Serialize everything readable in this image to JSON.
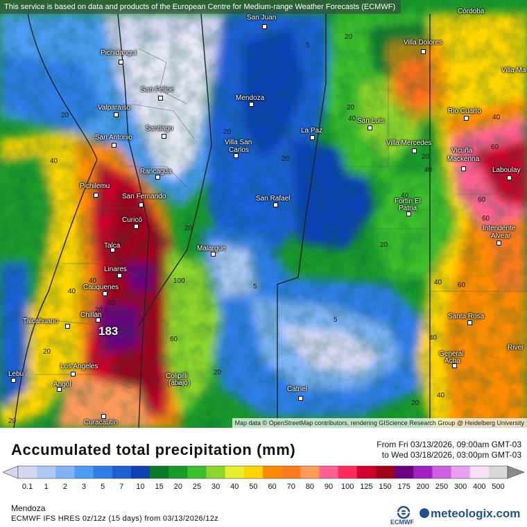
{
  "notice": "This service is based on data and products of the European Centre for Medium-range Weather Forecasts (ECMWF)",
  "attribution": "Map data © OpenStreetMap contributors, rendering GIScience Research Group @ Heidelberg University",
  "cities": {
    "san_juan": "San Juan",
    "cordoba": "Córdoba",
    "pichidangui": "Pichidangui",
    "villa_dolores": "Villa Dolores",
    "villa_ma": "Villa Ma",
    "san_felipe": "San Felipe",
    "mendoza": "Mendoza",
    "valparaiso": "Valparaíso",
    "rio_cuarto": "Rio Cuarto",
    "la_paz": "La Paz",
    "san_luis": "San Luis",
    "santiago": "Santiago",
    "san_antonio": "San Antonio",
    "villa_san_carlos_1": "Villa San",
    "villa_san_carlos_2": "Carlos",
    "villa_mercedes": "Villa Mercedes",
    "vicuna_mackenna_1": "Vicuña",
    "vicuna_mackenna_2": "Mackenna",
    "rancagua": "Rancagua",
    "laboulaye": "Laboulay",
    "pichilemu": "Pichilemu",
    "san_fernando": "San Fernando",
    "san_rafael": "San Rafael",
    "fortin_el_patria_1": "Fortín El",
    "fortin_el_patria_2": "Patria",
    "curico": "Curicó",
    "intendente_alvear_1": "Intendente",
    "intendente_alvear_2": "Alvear",
    "talca": "Talca",
    "malargue": "Malargüe",
    "linares": "Linares",
    "cauquenes": "Cauquenes",
    "santa_rosa": "Santa Rosa",
    "talcahuano": "Talcahuano",
    "chillan": "Chillán",
    "rivera": "River",
    "general_acha_1": "General",
    "general_acha_2": "Acha",
    "los_angeles": "Los Angeles",
    "lebu": "Lebu",
    "colipilli_1": "Colipilli",
    "colipilli_2": "(abajo)",
    "angol": "Angol",
    "catriel": "Catriel",
    "curacautin": "Curacautín"
  },
  "contour_labels": {
    "c1": "20",
    "c2": "5",
    "c3": "20",
    "c4": "40",
    "c5": "20",
    "c6": "40",
    "c7": "20",
    "c8": "40",
    "c9": "20",
    "c10": "20",
    "c11": "40",
    "c12": "60",
    "c13": "40",
    "c14": "60",
    "c15": "20",
    "c16": "60",
    "c17": "20",
    "c18": "5",
    "c19": "40",
    "c20": "40",
    "c21": "60",
    "c22": "40",
    "c23": "60",
    "c24": "20",
    "c25": "5",
    "c26": "40",
    "c27": "20",
    "c28": "20",
    "c29": "20",
    "c30": "100",
    "c31": "40",
    "c32": "60",
    "c33": "20"
  },
  "max_value": "183",
  "title": "Accumulated total precipitation (mm)",
  "period_from": "From Fri 03/13/2026, 09:00am GMT-03",
  "period_to": "to Wed 03/18/2026, 03:00pm GMT-03",
  "legend": {
    "labels": [
      "0.1",
      "1",
      "2",
      "3",
      "5",
      "7",
      "10",
      "15",
      "20",
      "25",
      "30",
      "40",
      "50",
      "60",
      "70",
      "80",
      "90",
      "100",
      "125",
      "150",
      "175",
      "200",
      "250",
      "300",
      "400",
      "500"
    ],
    "colors": [
      "#d6d6f2",
      "#aec8f5",
      "#7fb3f5",
      "#4b9cf2",
      "#2f7ee8",
      "#1f5fd6",
      "#0f3fb5",
      "#0a7a2a",
      "#1a9a2a",
      "#3cbf2a",
      "#8fd42a",
      "#e8ef2a",
      "#ffd500",
      "#ff8c00",
      "#ff7a1a",
      "#ff9a5a",
      "#ff6090",
      "#ff2a5a",
      "#d0002a",
      "#a0001a",
      "#6a0080",
      "#a020c0",
      "#cc60e0",
      "#e8a0f0",
      "#f6e0f8",
      "#d8d8d8"
    ]
  },
  "region": "Mendoza",
  "model": "ECMWF IFS HRES 0z/12z (15 days) from  03/13/2026/12z",
  "ecmwf_logo": "ECMWF",
  "brand": "meteologix.com"
}
